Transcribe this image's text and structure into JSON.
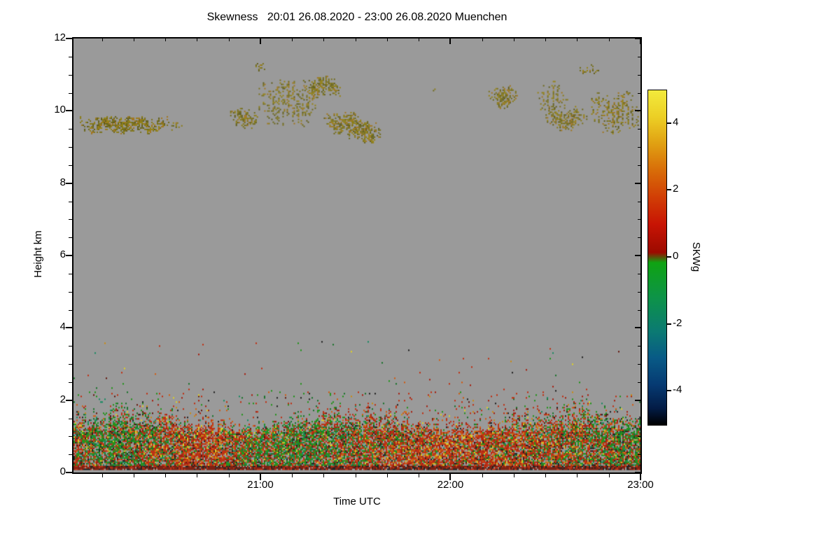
{
  "chart_data": {
    "type": "heatmap",
    "title": "Skewness   20:01 26.08.2020 - 23:00 26.08.2020 Muenchen",
    "xlabel": "Time UTC",
    "ylabel": "Height km",
    "x_start": "20:01",
    "x_end": "23:00",
    "x_total_minutes": 179,
    "x_ticks": [
      {
        "label": "21:00",
        "minute": 59
      },
      {
        "label": "22:00",
        "minute": 119
      },
      {
        "label": "23:00",
        "minute": 179
      }
    ],
    "x_minor_step_minutes": 10,
    "ylim": [
      0,
      12
    ],
    "y_ticks": [
      0,
      2,
      4,
      6,
      8,
      10,
      12
    ],
    "y_minor_step": 0.5,
    "grid": false,
    "legend_position": "right-colorbar",
    "no_data_color": "#9a9a9a",
    "colorbar": {
      "label": "SKWg",
      "range": [
        -5,
        5
      ],
      "ticks": [
        4,
        2,
        0,
        -2,
        -4
      ],
      "stops": [
        {
          "v": 5.0,
          "color": "#f2ea3c"
        },
        {
          "v": 4.2,
          "color": "#eccf25"
        },
        {
          "v": 3.4,
          "color": "#e0a012"
        },
        {
          "v": 2.6,
          "color": "#d86c08"
        },
        {
          "v": 1.8,
          "color": "#d13e05"
        },
        {
          "v": 1.0,
          "color": "#c81404"
        },
        {
          "v": 0.15,
          "color": "#9c0a00"
        },
        {
          "v": -0.15,
          "color": "#0fa312"
        },
        {
          "v": -1.2,
          "color": "#0d9348"
        },
        {
          "v": -2.2,
          "color": "#0b7a72"
        },
        {
          "v": -3.0,
          "color": "#085a86"
        },
        {
          "v": -3.8,
          "color": "#063a72"
        },
        {
          "v": -4.5,
          "color": "#031c46"
        },
        {
          "v": -5.0,
          "color": "#000000"
        }
      ]
    },
    "seed": 20200826,
    "cloud_layer": {
      "description": "Cirrus-like cloud returns 9-11.3 km with positive skewness ~ +1.5 to +3 (olive / dark yellow speckle)",
      "skw_range": [
        1.5,
        3
      ],
      "colors": [
        "#7c721c",
        "#8a7c14",
        "#6e6a1a",
        "#97830f",
        "#5f5c18",
        "#a3761c"
      ],
      "patches": [
        {
          "t0": 2,
          "t1": 30,
          "h0": 9.35,
          "h1": 9.85,
          "density": 0.8,
          "streaky": false
        },
        {
          "t0": 30,
          "t1": 34,
          "h0": 9.45,
          "h1": 9.7,
          "density": 0.3,
          "streaky": false
        },
        {
          "t0": 49,
          "t1": 58,
          "h0": 9.5,
          "h1": 10.05,
          "density": 0.7,
          "streaky": false
        },
        {
          "t0": 58,
          "t1": 77,
          "h0": 9.55,
          "h1": 10.85,
          "density": 0.6,
          "streaky": true
        },
        {
          "t0": 57,
          "t1": 61,
          "h0": 11.05,
          "h1": 11.3,
          "density": 0.35,
          "streaky": false
        },
        {
          "t0": 72,
          "t1": 84,
          "h0": 10.35,
          "h1": 10.95,
          "density": 0.65,
          "streaky": false
        },
        {
          "t0": 79,
          "t1": 90,
          "h0": 9.35,
          "h1": 9.95,
          "density": 0.7,
          "streaky": false
        },
        {
          "t0": 86,
          "t1": 97,
          "h0": 9.1,
          "h1": 9.75,
          "density": 0.7,
          "streaky": false
        },
        {
          "t0": 113,
          "t1": 115,
          "h0": 10.5,
          "h1": 10.65,
          "density": 0.3,
          "streaky": false
        },
        {
          "t0": 131,
          "t1": 140,
          "h0": 10.05,
          "h1": 10.7,
          "density": 0.65,
          "streaky": false
        },
        {
          "t0": 146,
          "t1": 156,
          "h0": 9.9,
          "h1": 10.8,
          "density": 0.6,
          "streaky": true
        },
        {
          "t0": 149,
          "t1": 162,
          "h0": 9.4,
          "h1": 10.1,
          "density": 0.6,
          "streaky": false
        },
        {
          "t0": 158,
          "t1": 166,
          "h0": 10.9,
          "h1": 11.25,
          "density": 0.25,
          "streaky": false
        },
        {
          "t0": 163,
          "t1": 179,
          "h0": 9.35,
          "h1": 10.55,
          "density": 0.75,
          "streaky": true
        }
      ]
    },
    "boundary_layer": {
      "description": "Turbulent aerosol layer below ~1.5-2.2 km with mixed skewness speckle (-2 to +2), dense dark-red band near the surface",
      "skw_range": [
        -2,
        2
      ],
      "dense_top_km": 1.35,
      "fade_top_km": 2.2,
      "outlier_top_km": 3.6,
      "gap_bottom_km": 0.07,
      "surface_band_top_km": 0.18,
      "palette": [
        {
          "color": "#c32604",
          "w": 0.3,
          "family": "warm"
        },
        {
          "color": "#a81200",
          "w": 0.12,
          "family": "warm"
        },
        {
          "color": "#d55705",
          "w": 0.1,
          "family": "warm"
        },
        {
          "color": "#cf8a06",
          "w": 0.05,
          "family": "warm"
        },
        {
          "color": "#16930d",
          "w": 0.16,
          "family": "cool"
        },
        {
          "color": "#0b6e1e",
          "w": 0.08,
          "family": "cool"
        },
        {
          "color": "#0e8a5e",
          "w": 0.05,
          "family": "cool"
        },
        {
          "color": "#e4d51c",
          "w": 0.04,
          "family": "warm"
        },
        {
          "color": "#151515",
          "w": 0.07,
          "family": "dark"
        },
        {
          "color": "#5f0c00",
          "w": 0.03,
          "family": "dark"
        }
      ]
    }
  }
}
